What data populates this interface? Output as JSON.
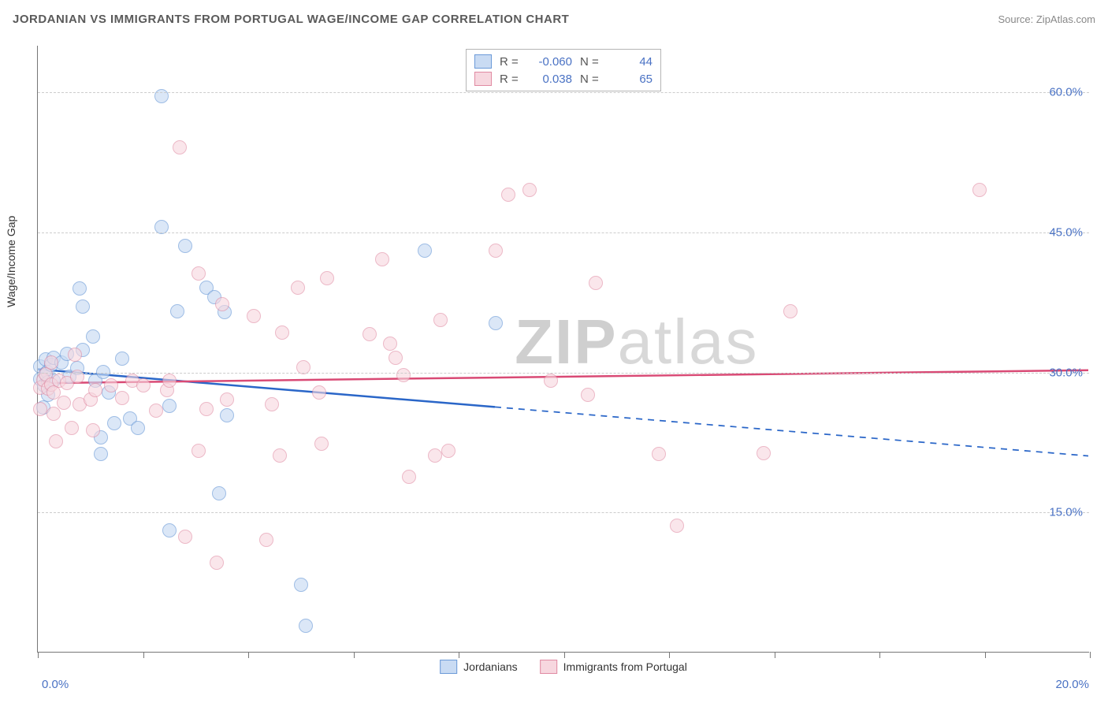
{
  "title": "JORDANIAN VS IMMIGRANTS FROM PORTUGAL WAGE/INCOME GAP CORRELATION CHART",
  "source": "Source: ZipAtlas.com",
  "watermark_a": "ZIP",
  "watermark_b": "atlas",
  "ylabel": "Wage/Income Gap",
  "chart": {
    "type": "scatter",
    "background_color": "#ffffff",
    "grid_color": "#cccccc",
    "xlim": [
      0.0,
      20.0
    ],
    "ylim": [
      0.0,
      65.0
    ],
    "xticks": [
      0.0,
      2.0,
      4.0,
      6.0,
      8.0,
      10.0,
      12.0,
      14.0,
      16.0,
      18.0,
      20.0
    ],
    "yticks": [
      15.0,
      30.0,
      45.0,
      60.0
    ],
    "xaxis_label_left": "0.0%",
    "xaxis_label_right": "20.0%",
    "marker_radius": 9,
    "marker_stroke_width": 1.5,
    "axis_label_color": "#4a72c4",
    "axis_label_fontsize": 15
  },
  "series": [
    {
      "key": "jordanians",
      "label": "Jordanians",
      "fill": "#c9dbf3",
      "stroke": "#6b9ad8",
      "fill_opacity": 0.65,
      "R": "-0.060",
      "N": "44",
      "regression": {
        "y_at_x0": 30.3,
        "y_at_x20": 21.0,
        "x_data_max": 8.7,
        "color": "#2a66c8",
        "width": 2.5
      },
      "points": [
        [
          0.05,
          30.6
        ],
        [
          0.05,
          29.2
        ],
        [
          0.1,
          26.2
        ],
        [
          0.12,
          28.5
        ],
        [
          0.15,
          29.8
        ],
        [
          0.15,
          31.3
        ],
        [
          0.18,
          30.0
        ],
        [
          0.2,
          27.5
        ],
        [
          0.2,
          28.9
        ],
        [
          0.25,
          30.7
        ],
        [
          0.3,
          31.5
        ],
        [
          0.3,
          29.0
        ],
        [
          0.45,
          31.0
        ],
        [
          0.55,
          31.9
        ],
        [
          0.6,
          29.5
        ],
        [
          0.75,
          30.4
        ],
        [
          0.8,
          38.9
        ],
        [
          0.85,
          37.0
        ],
        [
          0.85,
          32.3
        ],
        [
          1.05,
          33.8
        ],
        [
          1.1,
          29.0
        ],
        [
          1.2,
          23.0
        ],
        [
          1.2,
          21.2
        ],
        [
          1.25,
          30.0
        ],
        [
          1.35,
          27.8
        ],
        [
          1.45,
          24.5
        ],
        [
          1.6,
          31.4
        ],
        [
          1.75,
          25.0
        ],
        [
          1.9,
          24.0
        ],
        [
          2.35,
          59.5
        ],
        [
          2.35,
          45.5
        ],
        [
          2.5,
          13.0
        ],
        [
          2.5,
          26.3
        ],
        [
          2.65,
          36.5
        ],
        [
          2.8,
          43.5
        ],
        [
          3.2,
          39.0
        ],
        [
          3.35,
          38.0
        ],
        [
          3.45,
          17.0
        ],
        [
          3.55,
          36.4
        ],
        [
          3.6,
          25.3
        ],
        [
          5.0,
          7.2
        ],
        [
          5.1,
          2.8
        ],
        [
          7.35,
          43.0
        ],
        [
          8.7,
          35.2
        ]
      ]
    },
    {
      "key": "portugal",
      "label": "Immigrants from Portugal",
      "fill": "#f7d7df",
      "stroke": "#e08aa2",
      "fill_opacity": 0.6,
      "R": "0.038",
      "N": "65",
      "regression": {
        "y_at_x0": 28.8,
        "y_at_x20": 30.2,
        "x_data_max": 20.0,
        "color": "#d94a75",
        "width": 2.5
      },
      "points": [
        [
          0.05,
          28.3
        ],
        [
          0.05,
          26.0
        ],
        [
          0.1,
          29.1
        ],
        [
          0.15,
          29.7
        ],
        [
          0.2,
          28.2
        ],
        [
          0.25,
          31.0
        ],
        [
          0.25,
          28.6
        ],
        [
          0.3,
          25.5
        ],
        [
          0.3,
          27.8
        ],
        [
          0.35,
          22.5
        ],
        [
          0.4,
          29.0
        ],
        [
          0.5,
          26.7
        ],
        [
          0.55,
          28.8
        ],
        [
          0.65,
          24.0
        ],
        [
          0.7,
          31.8
        ],
        [
          0.75,
          29.5
        ],
        [
          0.8,
          26.5
        ],
        [
          1.0,
          27.0
        ],
        [
          1.05,
          23.7
        ],
        [
          1.1,
          28.0
        ],
        [
          1.4,
          28.5
        ],
        [
          1.6,
          27.2
        ],
        [
          1.8,
          29.0
        ],
        [
          2.0,
          28.5
        ],
        [
          2.25,
          25.8
        ],
        [
          2.45,
          28.0
        ],
        [
          2.5,
          29.0
        ],
        [
          2.7,
          54.0
        ],
        [
          2.8,
          12.3
        ],
        [
          3.05,
          40.5
        ],
        [
          3.05,
          21.5
        ],
        [
          3.2,
          26.0
        ],
        [
          3.4,
          9.5
        ],
        [
          3.5,
          37.2
        ],
        [
          3.6,
          27.0
        ],
        [
          4.1,
          36.0
        ],
        [
          4.35,
          12.0
        ],
        [
          4.45,
          26.5
        ],
        [
          4.6,
          21.0
        ],
        [
          4.65,
          34.2
        ],
        [
          4.95,
          39.0
        ],
        [
          5.05,
          30.5
        ],
        [
          5.35,
          27.8
        ],
        [
          5.4,
          22.3
        ],
        [
          5.5,
          40.0
        ],
        [
          6.3,
          34.0
        ],
        [
          6.55,
          42.0
        ],
        [
          6.7,
          33.0
        ],
        [
          6.8,
          31.5
        ],
        [
          6.95,
          29.6
        ],
        [
          7.05,
          18.7
        ],
        [
          7.55,
          21.0
        ],
        [
          7.65,
          35.5
        ],
        [
          7.8,
          21.5
        ],
        [
          8.7,
          43.0
        ],
        [
          8.95,
          49.0
        ],
        [
          9.35,
          49.5
        ],
        [
          9.75,
          29.0
        ],
        [
          10.45,
          27.5
        ],
        [
          10.6,
          39.5
        ],
        [
          11.8,
          21.2
        ],
        [
          12.15,
          13.5
        ],
        [
          13.8,
          21.3
        ],
        [
          14.3,
          36.5
        ],
        [
          17.9,
          49.5
        ]
      ]
    }
  ],
  "stat_legend": {
    "r_label": "R =",
    "n_label": "N ="
  },
  "bottom_legend": {
    "a": "Jordanians",
    "b": "Immigrants from Portugal"
  }
}
